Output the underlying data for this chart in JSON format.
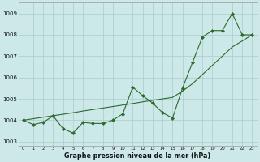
{
  "x": [
    0,
    1,
    2,
    3,
    4,
    5,
    6,
    7,
    8,
    9,
    10,
    11,
    12,
    13,
    14,
    15,
    16,
    17,
    18,
    19,
    20,
    21,
    22,
    23
  ],
  "y_main": [
    1004.0,
    1003.8,
    1003.9,
    1004.2,
    1003.6,
    1003.4,
    1003.9,
    1003.85,
    1003.85,
    1004.0,
    1004.3,
    1005.55,
    1005.15,
    1004.8,
    1004.35,
    1004.1,
    1005.5,
    1006.7,
    1007.9,
    1008.2,
    1008.2,
    1009.0,
    1008.0,
    1008.0
  ],
  "y_trend": [
    1004.0,
    1004.07,
    1004.14,
    1004.21,
    1004.28,
    1004.35,
    1004.43,
    1004.5,
    1004.57,
    1004.64,
    1004.71,
    1004.78,
    1004.86,
    1004.93,
    1005.0,
    1005.07,
    1005.36,
    1005.71,
    1006.14,
    1006.57,
    1007.0,
    1007.43,
    1007.71,
    1008.0
  ],
  "line_color": "#2d6a2d",
  "bg_color": "#cce8e8",
  "grid_color": "#aacccc",
  "ylabel_ticks": [
    1003,
    1004,
    1005,
    1006,
    1007,
    1008,
    1009
  ],
  "xlabel_ticks": [
    0,
    1,
    2,
    3,
    4,
    5,
    6,
    7,
    8,
    9,
    10,
    11,
    12,
    13,
    14,
    15,
    16,
    17,
    18,
    19,
    20,
    21,
    22,
    23
  ],
  "ylim": [
    1002.8,
    1009.5
  ],
  "xlim": [
    -0.5,
    23.5
  ],
  "xlabel": "Graphe pression niveau de la mer (hPa)",
  "marker": "D",
  "marker_size": 2.0,
  "line_width": 0.8
}
